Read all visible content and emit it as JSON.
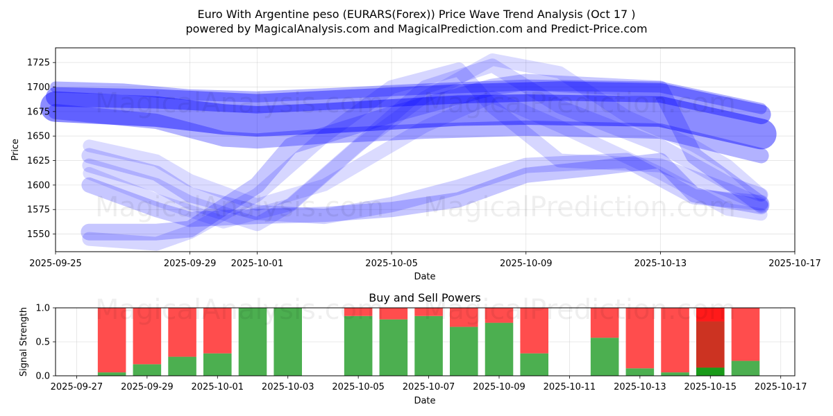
{
  "header": {
    "title_line1": "Euro With Argentine peso (EURARS(Forex)) Price Wave Trend Analysis (Oct 17 )",
    "title_line2": "powered by MagicalAnalysis.com and MagicalPrediction.com and Predict-Price.com"
  },
  "watermarks": [
    "MagicalAnalysis.com",
    "MagicalPrediction.com"
  ],
  "chart_data": [
    {
      "type": "line",
      "title": "",
      "xlabel": "Date",
      "ylabel": "Price",
      "x_ticks": [
        "2025-09-25",
        "2025-09-29",
        "2025-10-01",
        "2025-10-05",
        "2025-10-09",
        "2025-10-13",
        "2025-10-17"
      ],
      "y_ticks": [
        1550,
        1575,
        1600,
        1625,
        1650,
        1675,
        1700,
        1725
      ],
      "xlim": [
        "2025-09-25",
        "2025-10-17"
      ],
      "ylim": [
        1532,
        1740
      ],
      "grid": true,
      "series_color": "#0000ff",
      "series": [
        {
          "x": [
            "2025-09-25",
            "2025-09-28",
            "2025-09-30",
            "2025-10-01",
            "2025-10-03",
            "2025-10-05",
            "2025-10-07",
            "2025-10-09",
            "2025-10-11",
            "2025-10-13",
            "2025-10-16"
          ],
          "y": [
            1680,
            1675,
            1667,
            1665,
            1668,
            1672,
            1676,
            1677,
            1676,
            1675,
            1652
          ]
        },
        {
          "x": [
            "2025-09-25",
            "2025-09-28",
            "2025-10-01",
            "2025-10-04",
            "2025-10-07",
            "2025-10-10",
            "2025-10-13",
            "2025-10-16"
          ],
          "y": [
            1690,
            1688,
            1683,
            1688,
            1693,
            1696,
            1694,
            1672
          ]
        },
        {
          "x": [
            "2025-09-25",
            "2025-09-28",
            "2025-09-30",
            "2025-10-01",
            "2025-10-03",
            "2025-10-06",
            "2025-10-09",
            "2025-10-13",
            "2025-10-16"
          ],
          "y": [
            1675,
            1665,
            1647,
            1645,
            1650,
            1655,
            1658,
            1655,
            1630
          ]
        },
        {
          "x": [
            "2025-09-25",
            "2025-09-27",
            "2025-09-29",
            "2025-10-01",
            "2025-10-03",
            "2025-10-06",
            "2025-10-09",
            "2025-10-13",
            "2025-10-16"
          ],
          "y": [
            1700,
            1698,
            1692,
            1690,
            1693,
            1698,
            1702,
            1700,
            1678
          ]
        },
        {
          "x": [
            "2025-09-26",
            "2025-09-28",
            "2025-09-29",
            "2025-10-01",
            "2025-10-02",
            "2025-10-05",
            "2025-10-08",
            "2025-10-09",
            "2025-10-13",
            "2025-10-14",
            "2025-10-16"
          ],
          "y": [
            1552,
            1552,
            1555,
            1600,
            1640,
            1672,
            1700,
            1705,
            1698,
            1630,
            1580
          ]
        },
        {
          "x": [
            "2025-09-26",
            "2025-09-28",
            "2025-09-29",
            "2025-10-01",
            "2025-10-03",
            "2025-10-05",
            "2025-10-07",
            "2025-10-09",
            "2025-10-11",
            "2025-10-13",
            "2025-10-14",
            "2025-10-16"
          ],
          "y": [
            1600,
            1575,
            1565,
            1568,
            1570,
            1575,
            1585,
            1610,
            1617,
            1625,
            1590,
            1578
          ]
        },
        {
          "x": [
            "2025-09-26",
            "2025-09-28",
            "2025-09-29",
            "2025-10-01",
            "2025-10-03",
            "2025-10-05",
            "2025-10-07",
            "2025-10-09",
            "2025-10-12",
            "2025-10-14",
            "2025-10-16"
          ],
          "y": [
            1630,
            1612,
            1590,
            1572,
            1568,
            1580,
            1598,
            1620,
            1625,
            1588,
            1582
          ]
        },
        {
          "x": [
            "2025-09-26",
            "2025-09-28",
            "2025-09-29",
            "2025-10-01",
            "2025-10-02",
            "2025-10-04",
            "2025-10-06",
            "2025-10-08",
            "2025-10-10",
            "2025-10-13",
            "2025-10-15",
            "2025-10-16"
          ],
          "y": [
            1620,
            1600,
            1582,
            1560,
            1580,
            1640,
            1700,
            1722,
            1680,
            1640,
            1602,
            1590
          ]
        },
        {
          "x": [
            "2025-09-26",
            "2025-09-28",
            "2025-09-29",
            "2025-10-01",
            "2025-10-03",
            "2025-10-05",
            "2025-10-07",
            "2025-10-08",
            "2025-10-10",
            "2025-10-13",
            "2025-10-15",
            "2025-10-16"
          ],
          "y": [
            1545,
            1540,
            1552,
            1590,
            1650,
            1700,
            1718,
            1680,
            1625,
            1620,
            1595,
            1580
          ]
        },
        {
          "x": [
            "2025-09-26",
            "2025-09-28",
            "2025-09-29",
            "2025-10-01",
            "2025-10-03",
            "2025-10-06",
            "2025-10-08",
            "2025-10-10",
            "2025-10-13",
            "2025-10-15",
            "2025-10-16"
          ],
          "y": [
            1640,
            1625,
            1605,
            1580,
            1600,
            1660,
            1690,
            1660,
            1612,
            1575,
            1570
          ]
        },
        {
          "x": [
            "2025-09-26",
            "2025-09-28",
            "2025-09-30",
            "2025-10-02",
            "2025-10-04",
            "2025-10-06",
            "2025-10-08",
            "2025-10-10",
            "2025-10-12",
            "2025-10-14",
            "2025-10-15",
            "2025-10-16"
          ],
          "y": [
            1612,
            1585,
            1562,
            1580,
            1640,
            1690,
            1728,
            1715,
            1670,
            1640,
            1620,
            1590
          ]
        }
      ]
    },
    {
      "type": "bar",
      "title": "Buy and Sell Powers",
      "xlabel": "Date",
      "ylabel": "Signal Strength",
      "x_ticks": [
        "2025-09-27",
        "2025-09-29",
        "2025-10-01",
        "2025-10-03",
        "2025-10-05",
        "2025-10-07",
        "2025-10-09",
        "2025-10-11",
        "2025-10-13",
        "2025-10-15",
        "2025-10-17"
      ],
      "y_ticks": [
        0.0,
        0.5,
        1.0
      ],
      "ylim": [
        0,
        1.0
      ],
      "xlim": [
        "2025-09-26.4",
        "2025-10-17.4"
      ],
      "grid": true,
      "buy_color": "#4caf50",
      "sell_color": "#ff4d4d",
      "categories": [
        "2025-09-28",
        "2025-09-29",
        "2025-09-30",
        "2025-10-01",
        "2025-10-02",
        "2025-10-03",
        "2025-10-05",
        "2025-10-06",
        "2025-10-07",
        "2025-10-08",
        "2025-10-09",
        "2025-10-10",
        "2025-10-12",
        "2025-10-13",
        "2025-10-14",
        "2025-10-15",
        "2025-10-16"
      ],
      "series": [
        {
          "name": "Buy",
          "values": [
            0.05,
            0.17,
            0.28,
            0.33,
            1.0,
            1.0,
            0.88,
            0.83,
            0.88,
            0.72,
            0.78,
            0.33,
            0.56,
            0.11,
            0.05,
            0.11,
            0.22
          ]
        },
        {
          "name": "Sell",
          "values": [
            0.95,
            0.83,
            0.72,
            0.67,
            0.0,
            0.0,
            0.12,
            0.17,
            0.12,
            0.28,
            0.22,
            0.67,
            0.44,
            0.89,
            0.95,
            0.89,
            0.78
          ]
        }
      ],
      "overlay": {
        "category": "2025-10-15",
        "buy": 0.12,
        "mid": 0.8,
        "buy_color": "#1a9a1a",
        "mid_color": "#cc3322",
        "sell_color": "#ff1a1a"
      }
    }
  ]
}
